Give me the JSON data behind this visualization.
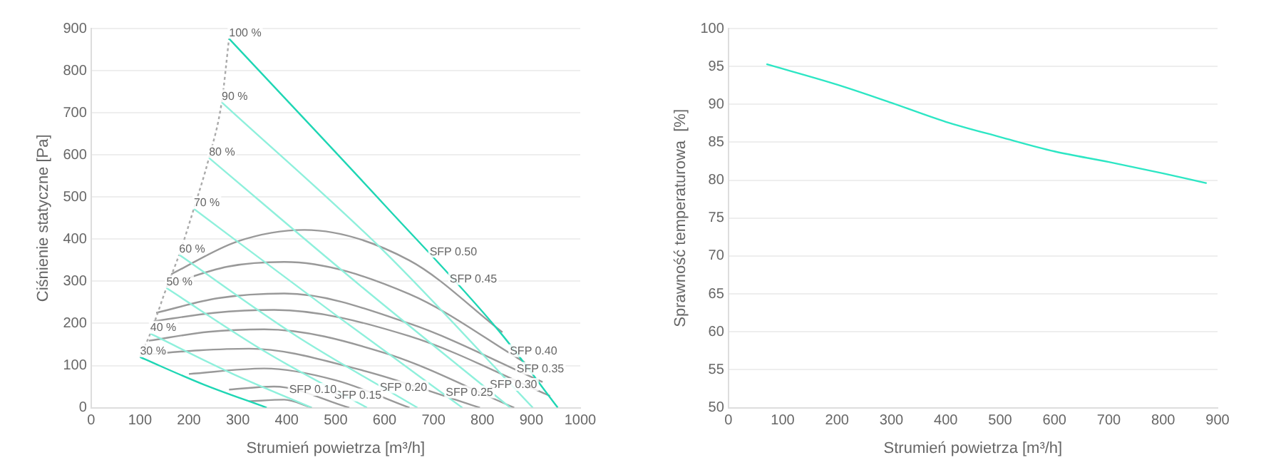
{
  "chart_data": [
    {
      "type": "line",
      "xlabel": "Strumień powietrza [m³/h]",
      "ylabel": "Ciśnienie statyczne [Pa]",
      "xlim": [
        0,
        1000
      ],
      "xticks": [
        0,
        100,
        200,
        300,
        400,
        500,
        600,
        700,
        800,
        900,
        1000
      ],
      "ylim": [
        0,
        900
      ],
      "yticks": [
        0,
        100,
        200,
        300,
        400,
        500,
        600,
        700,
        800,
        900
      ],
      "grid": "y",
      "marker": "none",
      "series": [
        {
          "color": "#1fd6b4",
          "x": [
            282,
            600,
            836,
            954
          ],
          "values": [
            876,
            481,
            179,
            0
          ]
        },
        {
          "color": "#8ff0dc",
          "x": [
            267,
            600,
            903
          ],
          "values": [
            725,
            370,
            0
          ]
        },
        {
          "color": "#8ff0dc",
          "x": [
            241,
            550,
            857
          ],
          "values": [
            593,
            290,
            0
          ]
        },
        {
          "color": "#8ff0dc",
          "x": [
            210,
            500,
            759
          ],
          "values": [
            472,
            220,
            0
          ]
        },
        {
          "color": "#8ff0dc",
          "x": [
            180,
            420,
            667
          ],
          "values": [
            363,
            170,
            0
          ]
        },
        {
          "color": "#8ff0dc",
          "x": [
            154,
            360,
            564
          ],
          "values": [
            284,
            130,
            0
          ]
        },
        {
          "color": "#8ff0dc",
          "x": [
            121,
            290,
            451
          ],
          "values": [
            176,
            80,
            0
          ]
        },
        {
          "color": "#1fd6b4",
          "x": [
            100,
            230,
            359
          ],
          "values": [
            120,
            55,
            0
          ]
        },
        {
          "color": "#aaaaaa",
          "line_style": "dotted",
          "x": [
            100,
            121,
            154,
            180,
            210,
            241,
            267,
            282
          ],
          "values": [
            120,
            176,
            284,
            363,
            472,
            593,
            725,
            876
          ]
        },
        {
          "color": "#999999",
          "x": [
            164,
            300,
            436,
            650,
            841
          ],
          "values": [
            317,
            395,
            422,
            350,
            179
          ]
        },
        {
          "color": "#999999",
          "x": [
            154,
            280,
            395,
            650,
            887
          ],
          "values": [
            291,
            335,
            346,
            270,
            107
          ]
        },
        {
          "color": "#999999",
          "x": [
            133,
            260,
            395,
            650,
            923
          ],
          "values": [
            225,
            260,
            271,
            200,
            61
          ]
        },
        {
          "color": "#999999",
          "x": [
            128,
            250,
            374,
            650,
            938
          ],
          "values": [
            205,
            225,
            232,
            170,
            28
          ]
        },
        {
          "color": "#999999",
          "x": [
            118,
            240,
            354,
            600,
            865
          ],
          "values": [
            159,
            180,
            186,
            130,
            0
          ]
        },
        {
          "color": "#999999",
          "x": [
            108,
            220,
            323,
            550,
            795
          ],
          "values": [
            126,
            136,
            140,
            90,
            0
          ]
        },
        {
          "color": "#999999",
          "x": [
            200,
            354,
            500,
            651
          ],
          "values": [
            80,
            93,
            65,
            0
          ]
        },
        {
          "color": "#999999",
          "x": [
            282,
            374,
            528
          ],
          "values": [
            43,
            50,
            0
          ]
        },
        {
          "color": "#999999",
          "x": [
            323,
            395,
            451
          ],
          "values": [
            15,
            19,
            0
          ]
        }
      ],
      "annotations": [
        {
          "text": "100 %",
          "x": 282,
          "y": 876
        },
        {
          "text": "90 %",
          "x": 267,
          "y": 725
        },
        {
          "text": "80 %",
          "x": 241,
          "y": 593
        },
        {
          "text": "70 %",
          "x": 210,
          "y": 472
        },
        {
          "text": "60 %",
          "x": 180,
          "y": 363
        },
        {
          "text": "50 %",
          "x": 154,
          "y": 284
        },
        {
          "text": "40 %",
          "x": 121,
          "y": 176
        },
        {
          "text": "30 %",
          "x": 100,
          "y": 120
        },
        {
          "text": "SFP 0.50",
          "x": 692,
          "y": 356
        },
        {
          "text": "SFP 0.45",
          "x": 733,
          "y": 291
        },
        {
          "text": "SFP 0.40",
          "x": 856,
          "y": 120
        },
        {
          "text": "SFP 0.35",
          "x": 870,
          "y": 78
        },
        {
          "text": "SFP 0.30",
          "x": 815,
          "y": 40
        },
        {
          "text": "SFP 0.25",
          "x": 725,
          "y": 22
        },
        {
          "text": "SFP 0.20",
          "x": 590,
          "y": 34
        },
        {
          "text": "SFP 0.15",
          "x": 497,
          "y": 15
        },
        {
          "text": "SFP 0.10",
          "x": 405,
          "y": 28
        }
      ]
    },
    {
      "type": "line",
      "xlabel": "Strumień powietrza [m³/h]",
      "ylabel": "Sprawność temperaturowa  [%]",
      "xlim": [
        0,
        900
      ],
      "xticks": [
        0,
        100,
        200,
        300,
        400,
        500,
        600,
        700,
        800,
        900
      ],
      "ylim": [
        50,
        100
      ],
      "yticks": [
        50,
        55,
        60,
        65,
        70,
        75,
        80,
        85,
        90,
        95,
        100
      ],
      "grid": "y",
      "marker": "none",
      "series": [
        {
          "color": "#2de6c4",
          "x": [
            70,
            200,
            300,
            400,
            500,
            600,
            700,
            800,
            880
          ],
          "values": [
            95.3,
            92.6,
            90.2,
            87.7,
            85.7,
            83.8,
            82.4,
            80.9,
            79.6
          ]
        }
      ]
    }
  ]
}
